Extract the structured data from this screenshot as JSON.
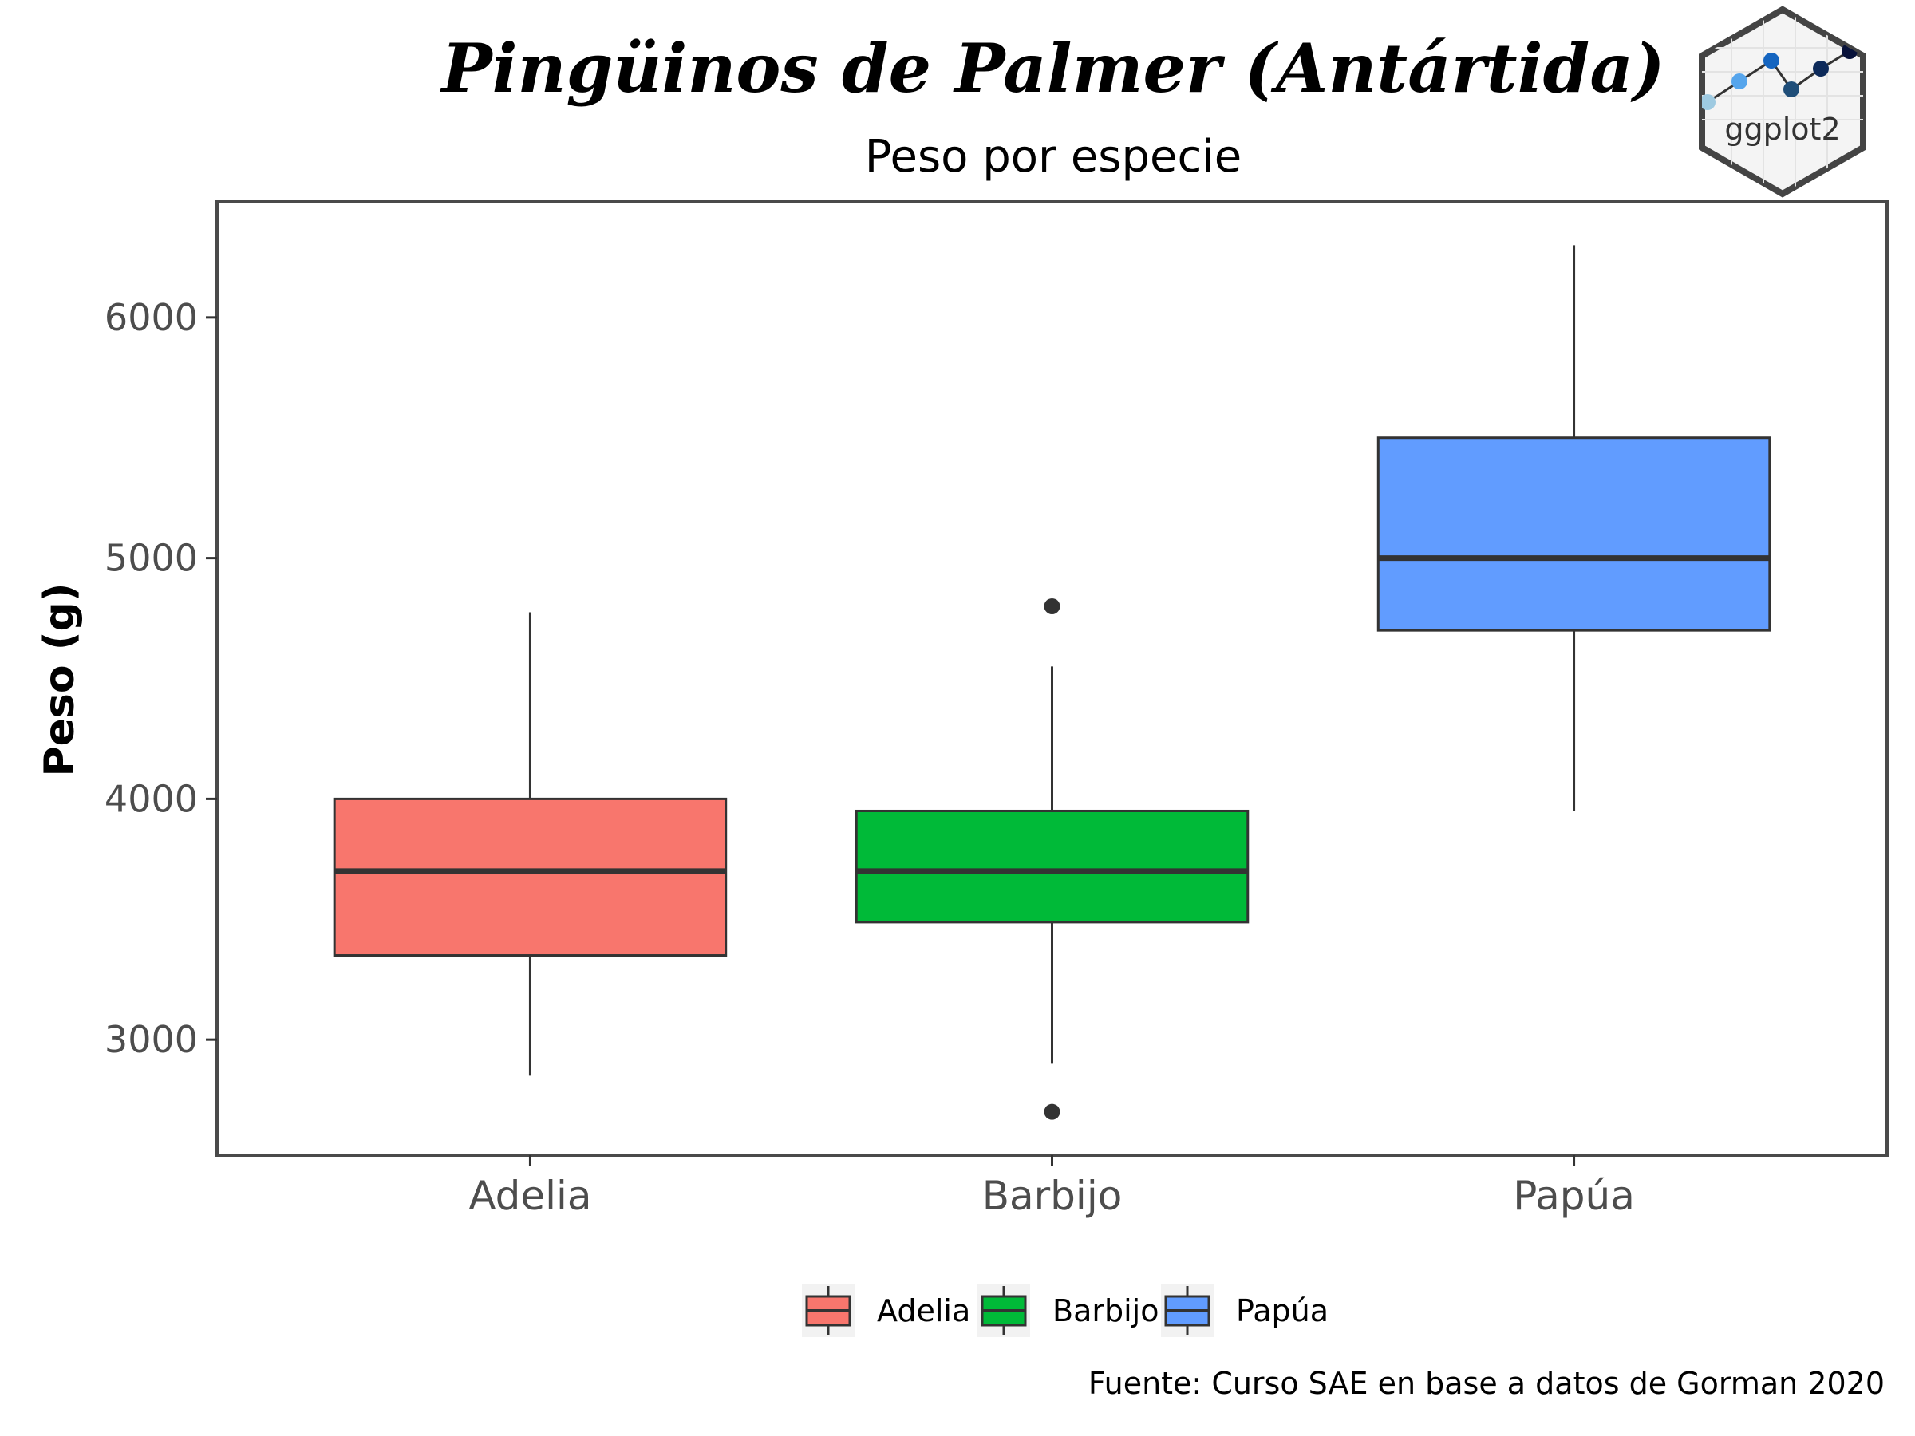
{
  "chart_data": {
    "type": "box",
    "title": "Pingüinos de Palmer (Antártida)",
    "subtitle": "Peso por especie",
    "xlabel": "",
    "ylabel": "Peso (g)",
    "ylim": [
      2520,
      6480
    ],
    "yticks": [
      3000,
      4000,
      5000,
      6000
    ],
    "categories": [
      "Adelia",
      "Barbijo",
      "Papúa"
    ],
    "series": [
      {
        "name": "Adelia",
        "color": "#F8766D",
        "whisker_low": 2850,
        "q1": 3350,
        "median": 3700,
        "q3": 4000,
        "whisker_high": 4775,
        "outliers": []
      },
      {
        "name": "Barbijo",
        "color": "#00BA38",
        "whisker_low": 2900,
        "q1": 3488,
        "median": 3700,
        "q3": 3950,
        "whisker_high": 4550,
        "outliers": [
          2700,
          4800
        ]
      },
      {
        "name": "Papúa",
        "color": "#619CFF",
        "whisker_low": 3950,
        "q1": 4700,
        "median": 5000,
        "q3": 5500,
        "whisker_high": 6300,
        "outliers": []
      }
    ],
    "legend": {
      "position": "bottom",
      "entries": [
        "Adelia",
        "Barbijo",
        "Papúa"
      ]
    },
    "grid": false,
    "caption": "Fuente: Curso SAE en base a datos de Gorman 2020"
  },
  "logo": {
    "text": "ggplot2",
    "icon": "ggplot2-hex-logo"
  }
}
